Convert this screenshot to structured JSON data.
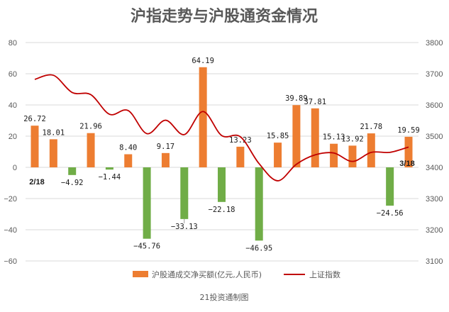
{
  "chart_data": {
    "type": "bar+line",
    "title": "沪指走势与沪股通资金情况",
    "credit": "21投资通制图",
    "start_label": "2/18",
    "end_label": "3/18",
    "y_left": {
      "ticks": [
        "80",
        "60",
        "40",
        "20",
        "0",
        "−20",
        "−40",
        "−60"
      ],
      "range": [
        -60,
        80
      ]
    },
    "y_right": {
      "ticks": [
        "3800",
        "3700",
        "3600",
        "3500",
        "3400",
        "3300",
        "3200",
        "3100"
      ],
      "range": [
        3100,
        3800
      ]
    },
    "series": [
      {
        "name": "沪股通成交净买额(亿元,人民币)",
        "kind": "bar",
        "color": "#ED7D31",
        "neg_color": "#70AD47",
        "values": [
          26.72,
          18.01,
          -4.92,
          21.96,
          -1.44,
          8.4,
          -45.76,
          9.17,
          -33.13,
          64.19,
          -22.18,
          13.23,
          -46.95,
          15.85,
          39.89,
          37.81,
          15.13,
          13.92,
          21.78,
          -24.56,
          19.59
        ],
        "labels": [
          "26.72",
          "18.01",
          "−4.92",
          "21.96",
          "−1.44",
          "8.40",
          "−45.76",
          "9.17",
          "−33.13",
          "64.19",
          "−22.18",
          "13.23",
          "−46.95",
          "15.85",
          "39.89",
          "37.81",
          "15.13",
          "13.92",
          "21.78",
          "−24.56",
          "19.59"
        ]
      },
      {
        "name": "上证指数",
        "kind": "line",
        "color": "#C00000",
        "values": [
          3682,
          3695,
          3640,
          3633,
          3570,
          3582,
          3508,
          3551,
          3505,
          3579,
          3502,
          3498,
          3412,
          3357,
          3410,
          3440,
          3446,
          3419,
          3448,
          3448,
          3465
        ]
      }
    ]
  }
}
